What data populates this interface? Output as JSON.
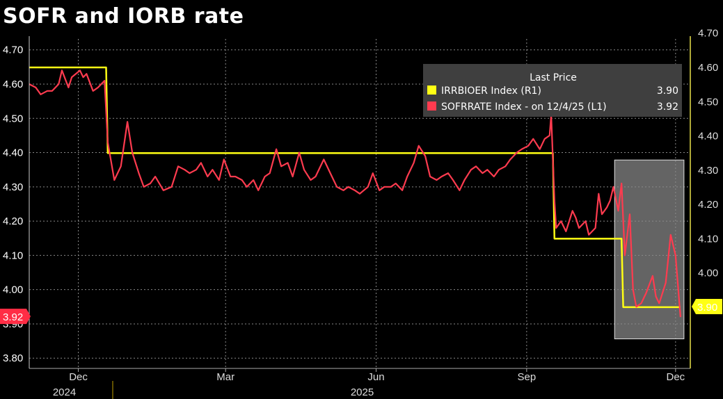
{
  "title": "SOFR and IORB rate",
  "colors": {
    "sofr": "#ff3b4f",
    "iorb": "#ffff14",
    "grid": "#8a8a8a",
    "axis_right": "#e9e14a"
  },
  "legend": {
    "header": "Last Price",
    "items": [
      {
        "name": "IRRBIOER Index  (R1)",
        "value": "3.90",
        "color": "#ffff14"
      },
      {
        "name": "SOFRRATE Index -  on 12/4/25  (L1)",
        "value": "3.92",
        "color": "#ff3b4f"
      }
    ]
  },
  "badges": {
    "left": "3.92",
    "right": "3.90"
  },
  "chart_data": {
    "type": "line",
    "title": "SOFR and IORB rate",
    "xlabel": "",
    "ylabel": "",
    "ylim": [
      3.77,
      4.74
    ],
    "grid": true,
    "legend_position": "top-right",
    "x_tick_labels": [
      "Dec",
      "Mar",
      "Jun",
      "Sep",
      "Dec"
    ],
    "x_year_labels": [
      "2024",
      "2025"
    ],
    "y_tick_labels_left": [
      "4.70",
      "4.60",
      "4.50",
      "4.40",
      "4.30",
      "4.20",
      "4.10",
      "4.00",
      "3.90",
      "3.80"
    ],
    "y_tick_labels_right": [
      "4.70",
      "4.60",
      "4.50",
      "4.40",
      "4.30",
      "4.20",
      "4.10",
      "4.00"
    ],
    "series": [
      {
        "name": "IRRBIOER Index",
        "axis": "right",
        "points": [
          [
            "2024-11-01",
            4.6
          ],
          [
            "2024-12-18",
            4.6
          ],
          [
            "2024-12-19",
            4.35
          ],
          [
            "2025-09-17",
            4.35
          ],
          [
            "2025-09-18",
            4.1
          ],
          [
            "2025-10-29",
            4.1
          ],
          [
            "2025-10-30",
            3.9
          ],
          [
            "2025-12-04",
            3.9
          ]
        ]
      },
      {
        "name": "SOFRRATE Index",
        "axis": "left",
        "points": [
          [
            "2024-11-01",
            4.6
          ],
          [
            "2024-11-05",
            4.59
          ],
          [
            "2024-11-08",
            4.57
          ],
          [
            "2024-11-12",
            4.58
          ],
          [
            "2024-11-15",
            4.58
          ],
          [
            "2024-11-19",
            4.6
          ],
          [
            "2024-11-21",
            4.64
          ],
          [
            "2024-11-25",
            4.59
          ],
          [
            "2024-11-27",
            4.62
          ],
          [
            "2024-12-02",
            4.64
          ],
          [
            "2024-12-04",
            4.62
          ],
          [
            "2024-12-06",
            4.63
          ],
          [
            "2024-12-10",
            4.58
          ],
          [
            "2024-12-13",
            4.59
          ],
          [
            "2024-12-17",
            4.61
          ],
          [
            "2024-12-19",
            4.43
          ],
          [
            "2024-12-23",
            4.32
          ],
          [
            "2024-12-27",
            4.36
          ],
          [
            "2024-12-31",
            4.49
          ],
          [
            "2025-01-03",
            4.4
          ],
          [
            "2025-01-07",
            4.34
          ],
          [
            "2025-01-10",
            4.3
          ],
          [
            "2025-01-14",
            4.31
          ],
          [
            "2025-01-17",
            4.33
          ],
          [
            "2025-01-22",
            4.29
          ],
          [
            "2025-01-27",
            4.3
          ],
          [
            "2025-01-31",
            4.36
          ],
          [
            "2025-02-04",
            4.35
          ],
          [
            "2025-02-07",
            4.34
          ],
          [
            "2025-02-11",
            4.35
          ],
          [
            "2025-02-14",
            4.37
          ],
          [
            "2025-02-18",
            4.33
          ],
          [
            "2025-02-21",
            4.35
          ],
          [
            "2025-02-25",
            4.32
          ],
          [
            "2025-02-28",
            4.38
          ],
          [
            "2025-03-04",
            4.33
          ],
          [
            "2025-03-07",
            4.33
          ],
          [
            "2025-03-11",
            4.32
          ],
          [
            "2025-03-14",
            4.3
          ],
          [
            "2025-03-18",
            4.32
          ],
          [
            "2025-03-21",
            4.29
          ],
          [
            "2025-03-25",
            4.33
          ],
          [
            "2025-03-28",
            4.34
          ],
          [
            "2025-04-01",
            4.41
          ],
          [
            "2025-04-04",
            4.36
          ],
          [
            "2025-04-08",
            4.37
          ],
          [
            "2025-04-11",
            4.33
          ],
          [
            "2025-04-15",
            4.4
          ],
          [
            "2025-04-18",
            4.35
          ],
          [
            "2025-04-22",
            4.32
          ],
          [
            "2025-04-25",
            4.33
          ],
          [
            "2025-04-30",
            4.38
          ],
          [
            "2025-05-05",
            4.33
          ],
          [
            "2025-05-08",
            4.3
          ],
          [
            "2025-05-12",
            4.29
          ],
          [
            "2025-05-15",
            4.3
          ],
          [
            "2025-05-19",
            4.29
          ],
          [
            "2025-05-22",
            4.28
          ],
          [
            "2025-05-27",
            4.3
          ],
          [
            "2025-05-30",
            4.34
          ],
          [
            "2025-06-03",
            4.29
          ],
          [
            "2025-06-06",
            4.3
          ],
          [
            "2025-06-10",
            4.3
          ],
          [
            "2025-06-13",
            4.31
          ],
          [
            "2025-06-17",
            4.29
          ],
          [
            "2025-06-20",
            4.33
          ],
          [
            "2025-06-24",
            4.37
          ],
          [
            "2025-06-27",
            4.42
          ],
          [
            "2025-07-01",
            4.39
          ],
          [
            "2025-07-04",
            4.33
          ],
          [
            "2025-07-08",
            4.32
          ],
          [
            "2025-07-11",
            4.33
          ],
          [
            "2025-07-15",
            4.34
          ],
          [
            "2025-07-18",
            4.32
          ],
          [
            "2025-07-22",
            4.29
          ],
          [
            "2025-07-25",
            4.32
          ],
          [
            "2025-07-29",
            4.35
          ],
          [
            "2025-08-01",
            4.36
          ],
          [
            "2025-08-05",
            4.34
          ],
          [
            "2025-08-08",
            4.35
          ],
          [
            "2025-08-12",
            4.33
          ],
          [
            "2025-08-15",
            4.35
          ],
          [
            "2025-08-19",
            4.36
          ],
          [
            "2025-08-22",
            4.38
          ],
          [
            "2025-08-26",
            4.4
          ],
          [
            "2025-08-29",
            4.41
          ],
          [
            "2025-09-02",
            4.42
          ],
          [
            "2025-09-05",
            4.44
          ],
          [
            "2025-09-09",
            4.41
          ],
          [
            "2025-09-12",
            4.44
          ],
          [
            "2025-09-15",
            4.45
          ],
          [
            "2025-09-16",
            4.51
          ],
          [
            "2025-09-18",
            4.26
          ],
          [
            "2025-09-19",
            4.18
          ],
          [
            "2025-09-22",
            4.2
          ],
          [
            "2025-09-25",
            4.17
          ],
          [
            "2025-09-29",
            4.23
          ],
          [
            "2025-10-01",
            4.21
          ],
          [
            "2025-10-03",
            4.18
          ],
          [
            "2025-10-07",
            4.2
          ],
          [
            "2025-10-09",
            4.16
          ],
          [
            "2025-10-13",
            4.18
          ],
          [
            "2025-10-15",
            4.28
          ],
          [
            "2025-10-17",
            4.22
          ],
          [
            "2025-10-20",
            4.24
          ],
          [
            "2025-10-22",
            4.26
          ],
          [
            "2025-10-24",
            4.3
          ],
          [
            "2025-10-27",
            4.23
          ],
          [
            "2025-10-29",
            4.31
          ],
          [
            "2025-10-31",
            4.1
          ],
          [
            "2025-11-03",
            4.22
          ],
          [
            "2025-11-05",
            4.0
          ],
          [
            "2025-11-07",
            3.95
          ],
          [
            "2025-11-10",
            3.96
          ],
          [
            "2025-11-13",
            3.99
          ],
          [
            "2025-11-17",
            4.04
          ],
          [
            "2025-11-19",
            3.98
          ],
          [
            "2025-11-21",
            3.96
          ],
          [
            "2025-11-25",
            4.02
          ],
          [
            "2025-11-28",
            4.16
          ],
          [
            "2025-12-01",
            4.1
          ],
          [
            "2025-12-04",
            3.92
          ]
        ]
      }
    ],
    "highlight_box": {
      "x_start": "2025-10-29",
      "x_end": "2025-12-04",
      "y_min": 3.84,
      "y_max": 4.35
    }
  }
}
